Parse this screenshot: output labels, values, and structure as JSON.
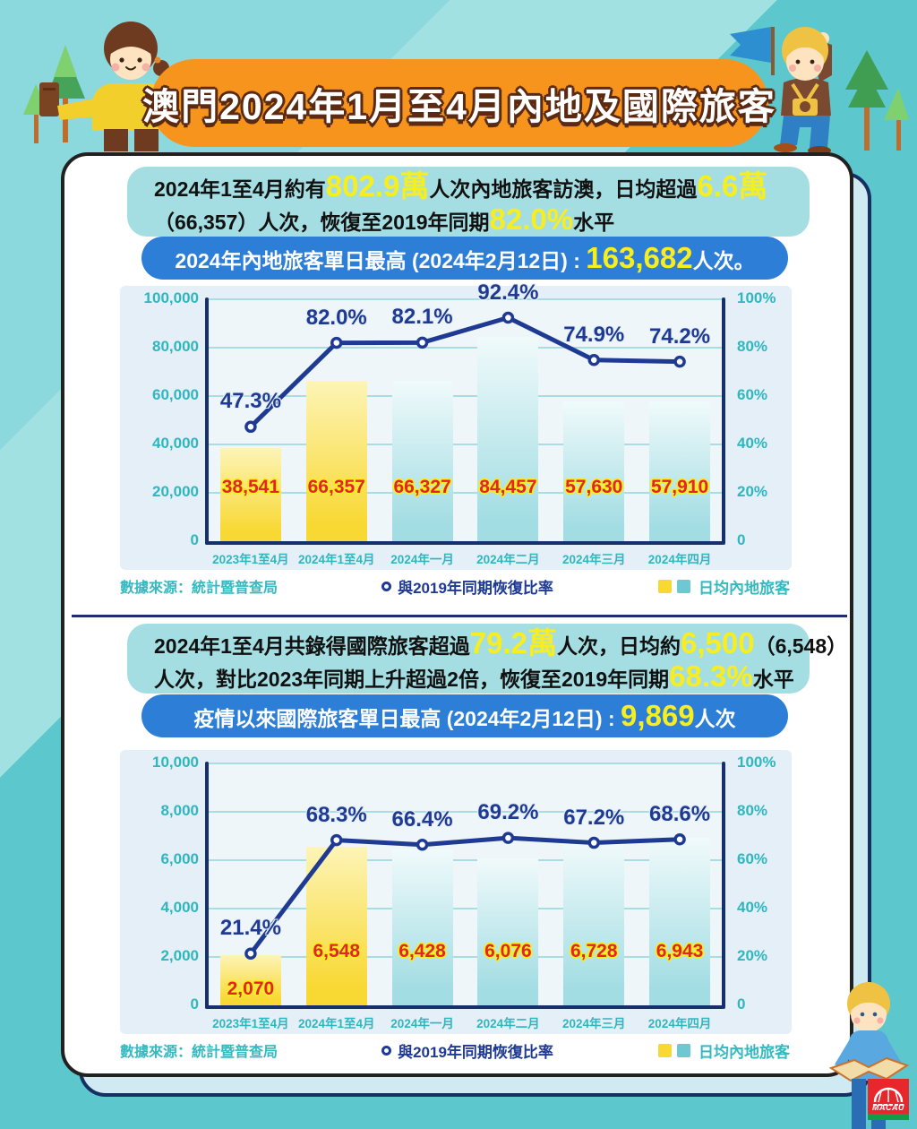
{
  "banner": {
    "title": "澳門2024年1月至4月內地及國際旅客"
  },
  "colors": {
    "background_teal": "#5cc8cd",
    "banner_orange": "#f6941d",
    "summary_bg": "#a5dee2",
    "pill_blue": "#2d7ed7",
    "highlight_yellow": "#f8ee1d",
    "panel_bg": "#e4eff7",
    "axis_navy": "#16306b",
    "grid_teal": "#a9dde3",
    "tick_teal": "#2fb6bf",
    "line": "#1f3a92",
    "value_label_red": "#e0252b",
    "bar_yellow_top": "#fdf4b6",
    "bar_yellow_bottom": "#f8d832",
    "bar_cyan_top": "#f0fafb",
    "bar_cyan_bottom": "#a2dde3"
  },
  "section1": {
    "summary_lines": [
      [
        {
          "t": "2024年1至4月約有",
          "hl": false
        },
        {
          "t": "802.9萬",
          "hl": true
        },
        {
          "t": "人次內地旅客訪澳，日均超過",
          "hl": false
        },
        {
          "t": "6.6萬",
          "hl": true
        }
      ],
      [
        {
          "t": "（66,357）人次，恢復至2019年同期",
          "hl": false
        },
        {
          "t": "82.0%",
          "hl": true
        },
        {
          "t": "水平",
          "hl": false
        }
      ]
    ],
    "pill_parts": [
      {
        "t": "2024年內地旅客單日最高 (2024年2月12日) : ",
        "hl": false
      },
      {
        "t": "163,682",
        "hl": true
      },
      {
        "t": "人次。",
        "hl": false
      }
    ],
    "footer": {
      "source": "數據來源：統計暨普查局",
      "line_legend": "與2019年同期恢復比率",
      "bar_legend": "日均內地旅客"
    }
  },
  "section2": {
    "summary_lines": [
      [
        {
          "t": "2024年1至4月共錄得國際旅客超過",
          "hl": false
        },
        {
          "t": "79.2萬",
          "hl": true
        },
        {
          "t": "人次，日均約",
          "hl": false
        },
        {
          "t": "6,500",
          "hl": true
        },
        {
          "t": "（6,548）",
          "hl": false
        }
      ],
      [
        {
          "t": "人次，對比2023年同期上升超過2倍，恢復至2019年同期",
          "hl": false
        },
        {
          "t": "68.3%",
          "hl": true
        },
        {
          "t": "水平",
          "hl": false
        }
      ]
    ],
    "pill_parts": [
      {
        "t": "疫情以來國際旅客單日最高 (2024年2月12日) : ",
        "hl": false
      },
      {
        "t": "9,869",
        "hl": true
      },
      {
        "t": "人次",
        "hl": false
      }
    ],
    "footer": {
      "source": "數據來源：統計暨普查局",
      "line_legend": "與2019年同期恢復比率",
      "bar_legend": "日均內地旅客"
    }
  },
  "chart_data": [
    {
      "type": "bar+line",
      "categories": [
        "2023年1至4月",
        "2024年1至4月",
        "2024年一月",
        "2024年二月",
        "2024年三月",
        "2024年四月"
      ],
      "bar_series": {
        "name": "日均內地旅客",
        "values": [
          38541,
          66357,
          66327,
          84457,
          57630,
          57910
        ],
        "labels": [
          "38,541",
          "66,357",
          "66,327",
          "84,457",
          "57,630",
          "57,910"
        ],
        "bar_colors": [
          "yellow",
          "yellow",
          "cyan",
          "cyan",
          "cyan",
          "cyan"
        ]
      },
      "line_series": {
        "name": "與2019年同期恢復比率",
        "values_pct": [
          47.3,
          82.0,
          82.1,
          92.4,
          74.9,
          74.2
        ],
        "labels": [
          "47.3%",
          "82.0%",
          "82.1%",
          "92.4%",
          "74.9%",
          "74.2%"
        ]
      },
      "left_axis": {
        "max": 100000,
        "ticks": [
          "0",
          "20,000",
          "40,000",
          "60,000",
          "80,000",
          "100,000"
        ]
      },
      "right_axis": {
        "max": 100,
        "ticks": [
          "0",
          "20%",
          "40%",
          "60%",
          "80%",
          "100%"
        ]
      },
      "grid": true,
      "legend_position": "bottom"
    },
    {
      "type": "bar+line",
      "categories": [
        "2023年1至4月",
        "2024年1至4月",
        "2024年一月",
        "2024年二月",
        "2024年三月",
        "2024年四月"
      ],
      "bar_series": {
        "name": "日均內地旅客",
        "values": [
          2070,
          6548,
          6428,
          6076,
          6728,
          6943
        ],
        "labels": [
          "2,070",
          "6,548",
          "6,428",
          "6,076",
          "6,728",
          "6,943"
        ],
        "bar_colors": [
          "yellow",
          "yellow",
          "cyan",
          "cyan",
          "cyan",
          "cyan"
        ]
      },
      "line_series": {
        "name": "與2019年同期恢復比率",
        "values_pct": [
          21.4,
          68.3,
          66.4,
          69.2,
          67.2,
          68.6
        ],
        "labels": [
          "21.4%",
          "68.3%",
          "66.4%",
          "69.2%",
          "67.2%",
          "68.6%"
        ]
      },
      "left_axis": {
        "max": 10000,
        "ticks": [
          "0",
          "2,000",
          "4,000",
          "6,000",
          "8,000",
          "10,000"
        ]
      },
      "right_axis": {
        "max": 100,
        "ticks": [
          "0",
          "20%",
          "40%",
          "60%",
          "80%",
          "100%"
        ]
      },
      "grid": true,
      "legend_position": "bottom"
    }
  ],
  "logo": {
    "text": "MACAU"
  }
}
